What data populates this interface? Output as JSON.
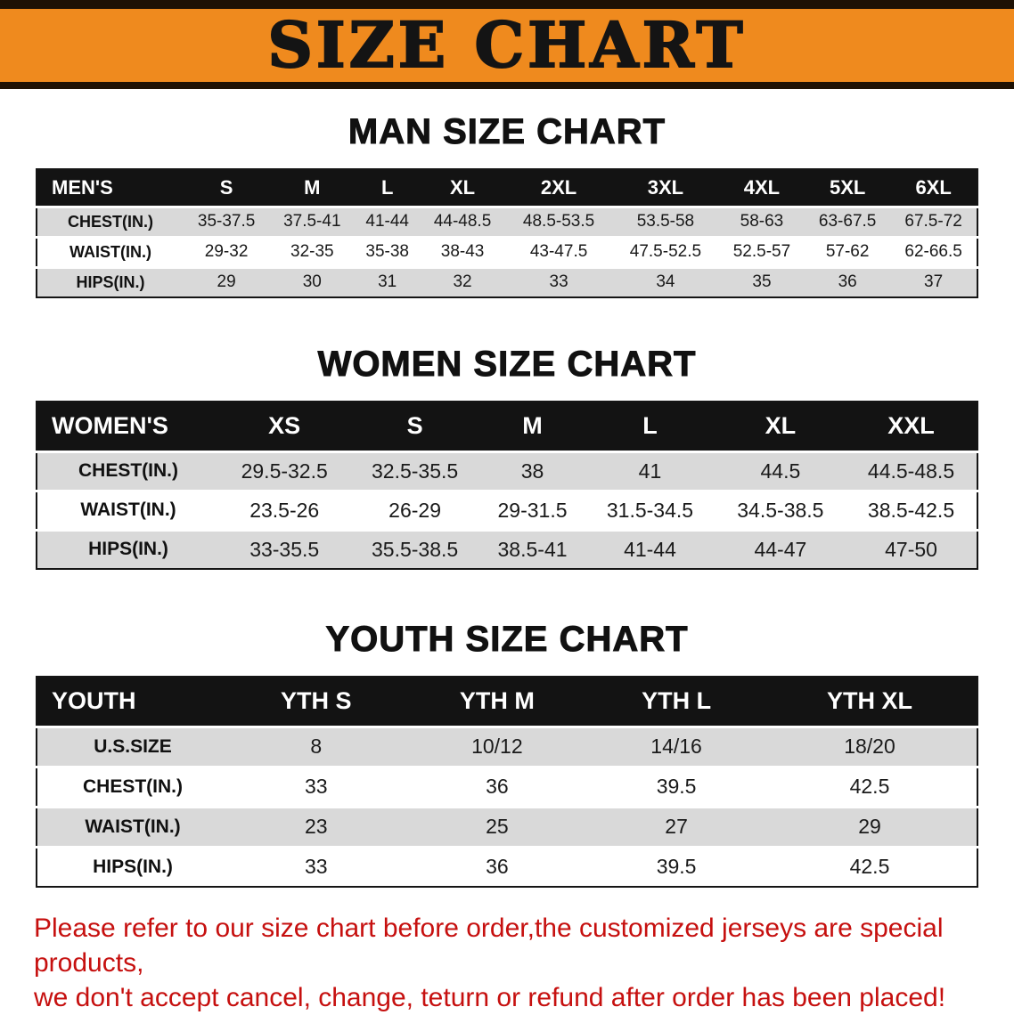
{
  "banner": {
    "title": "SIZE CHART"
  },
  "colors": {
    "banner_orange": "#ef8a1e",
    "banner_border": "#1e1104",
    "header_black": "#131313",
    "row_gray": "#d9d9d9",
    "row_white": "#ffffff",
    "note_red": "#c6100f"
  },
  "chart_data": [
    {
      "type": "table",
      "id": "men",
      "title": "MAN SIZE CHART",
      "header": [
        "MEN'S",
        "S",
        "M",
        "L",
        "XL",
        "2XL",
        "3XL",
        "4XL",
        "5XL",
        "6XL"
      ],
      "rows": [
        [
          "CHEST(IN.)",
          "35-37.5",
          "37.5-41",
          "41-44",
          "44-48.5",
          "48.5-53.5",
          "53.5-58",
          "58-63",
          "63-67.5",
          "67.5-72"
        ],
        [
          "WAIST(IN.)",
          "29-32",
          "32-35",
          "35-38",
          "38-43",
          "43-47.5",
          "47.5-52.5",
          "52.5-57",
          "57-62",
          "62-66.5"
        ],
        [
          "HIPS(IN.)",
          "29",
          "30",
          "31",
          "32",
          "33",
          "34",
          "35",
          "36",
          "37"
        ]
      ]
    },
    {
      "type": "table",
      "id": "women",
      "title": "WOMEN SIZE CHART",
      "header": [
        "WOMEN'S",
        "XS",
        "S",
        "M",
        "L",
        "XL",
        "XXL"
      ],
      "rows": [
        [
          "CHEST(IN.)",
          "29.5-32.5",
          "32.5-35.5",
          "38",
          "41",
          "44.5",
          "44.5-48.5"
        ],
        [
          "WAIST(IN.)",
          "23.5-26",
          "26-29",
          "29-31.5",
          "31.5-34.5",
          "34.5-38.5",
          "38.5-42.5"
        ],
        [
          "HIPS(IN.)",
          "33-35.5",
          "35.5-38.5",
          "38.5-41",
          "41-44",
          "44-47",
          "47-50"
        ]
      ]
    },
    {
      "type": "table",
      "id": "youth",
      "title": "YOUTH SIZE CHART",
      "header": [
        "YOUTH",
        "YTH S",
        "YTH M",
        "YTH L",
        "YTH XL"
      ],
      "rows": [
        [
          "U.S.SIZE",
          "8",
          "10/12",
          "14/16",
          "18/20"
        ],
        [
          "CHEST(IN.)",
          "33",
          "36",
          "39.5",
          "42.5"
        ],
        [
          "WAIST(IN.)",
          "23",
          "25",
          "27",
          "29"
        ],
        [
          "HIPS(IN.)",
          "33",
          "36",
          "39.5",
          "42.5"
        ]
      ]
    }
  ],
  "note": {
    "line1": "Please refer to our size chart before order,the customized jerseys are special products,",
    "line2": "we don't accept cancel, change, teturn or refund after order has been placed!"
  }
}
